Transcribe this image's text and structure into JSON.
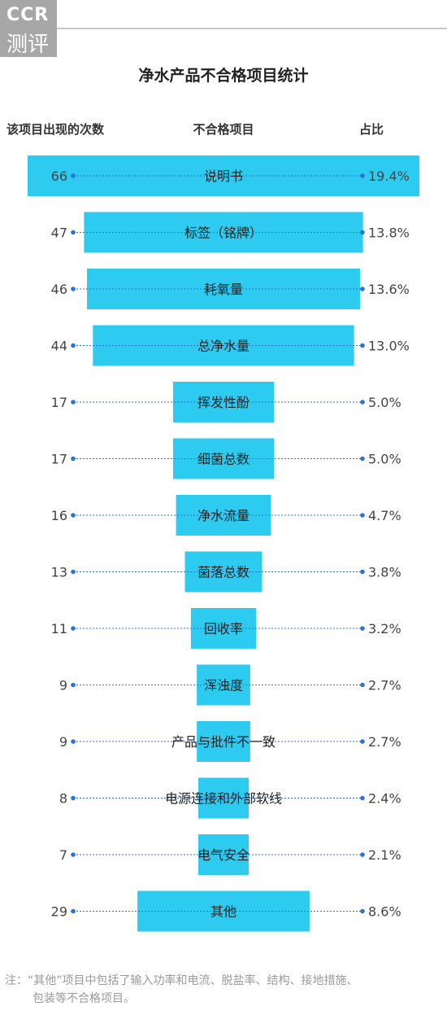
{
  "brand": {
    "line1": "CCR",
    "line2": "测评"
  },
  "chart_data": {
    "type": "bar",
    "title": "净水产品不合格项目统计",
    "headers": {
      "count": "该项目出现的次数",
      "item": "不合格项目",
      "ratio": "占比"
    },
    "categories": [
      "说明书",
      "标签（铭牌）",
      "耗氧量",
      "总净水量",
      "挥发性酚",
      "细菌总数",
      "净水流量",
      "菌落总数",
      "回收率",
      "浑浊度",
      "产品与批件不一致",
      "电源连接和外部软线",
      "电气安全",
      "其他"
    ],
    "values": [
      66,
      47,
      46,
      44,
      17,
      17,
      16,
      13,
      11,
      9,
      9,
      8,
      7,
      29
    ],
    "value_labels": [
      "66",
      "47",
      "46",
      "44",
      "17",
      "17",
      "16",
      "13",
      "11",
      "9",
      "9",
      "8",
      "7",
      "29"
    ],
    "ratios": [
      "19.4%",
      "13.8%",
      "13.6%",
      "13.0%",
      "5.0%",
      "5.0%",
      "4.7%",
      "3.8%",
      "3.2%",
      "2.7%",
      "2.7%",
      "2.4%",
      "2.1%",
      "8.6%"
    ],
    "bar_color": "#2ecbf1",
    "dot_color": "#2a73d6"
  },
  "note": {
    "line1": "注：“其他”项目中包括了输入功率和电流、脱盐率、结构、接地措施、",
    "line2": "包装等不合格项目。"
  }
}
